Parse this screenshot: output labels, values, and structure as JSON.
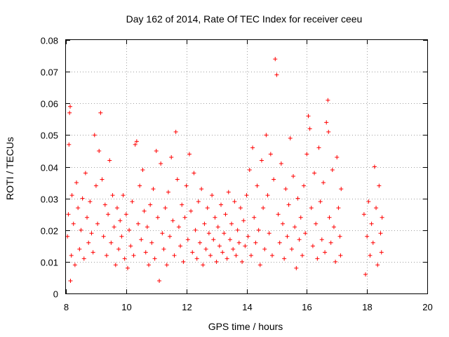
{
  "chart_data": {
    "type": "scatter",
    "title": "Day 162 of 2014, Rate Of TEC Index for receiver ceeu",
    "xlabel": "GPS time / hours",
    "ylabel": "ROTI / TECUs",
    "xlim": [
      8,
      20
    ],
    "ylim": [
      0,
      0.08
    ],
    "xticks": [
      8,
      10,
      12,
      14,
      16,
      18,
      20
    ],
    "xtick_labels": [
      "8",
      "10",
      "12",
      "14",
      "16",
      "18",
      "20"
    ],
    "yticks": [
      0,
      0.01,
      0.02,
      0.03,
      0.04,
      0.05,
      0.06,
      0.07,
      0.08
    ],
    "ytick_labels": [
      "0",
      "0.01",
      "0.02",
      "0.03",
      "0.04",
      "0.05",
      "0.06",
      "0.07",
      "0.08"
    ],
    "grid": true,
    "legend": "none",
    "marker": "+",
    "color": "#ff0000",
    "series": [
      {
        "name": "ROTI",
        "points": [
          [
            8.05,
            0.018
          ],
          [
            8.08,
            0.025
          ],
          [
            8.1,
            0.047
          ],
          [
            8.12,
            0.057
          ],
          [
            8.14,
            0.059
          ],
          [
            8.15,
            0.004
          ],
          [
            8.18,
            0.012
          ],
          [
            8.2,
            0.031
          ],
          [
            8.25,
            0.022
          ],
          [
            8.3,
            0.009
          ],
          [
            8.35,
            0.035
          ],
          [
            8.4,
            0.027
          ],
          [
            8.45,
            0.014
          ],
          [
            8.5,
            0.02
          ],
          [
            8.55,
            0.03
          ],
          [
            8.6,
            0.011
          ],
          [
            8.65,
            0.038
          ],
          [
            8.7,
            0.024
          ],
          [
            8.75,
            0.016
          ],
          [
            8.8,
            0.029
          ],
          [
            8.85,
            0.019
          ],
          [
            8.9,
            0.013
          ],
          [
            8.95,
            0.05
          ],
          [
            9.0,
            0.034
          ],
          [
            9.05,
            0.022
          ],
          [
            9.1,
            0.045
          ],
          [
            9.15,
            0.057
          ],
          [
            9.2,
            0.036
          ],
          [
            9.25,
            0.018
          ],
          [
            9.3,
            0.028
          ],
          [
            9.35,
            0.012
          ],
          [
            9.4,
            0.025
          ],
          [
            9.45,
            0.042
          ],
          [
            9.5,
            0.016
          ],
          [
            9.55,
            0.031
          ],
          [
            9.6,
            0.021
          ],
          [
            9.65,
            0.009
          ],
          [
            9.7,
            0.027
          ],
          [
            9.75,
            0.014
          ],
          [
            9.8,
            0.023
          ],
          [
            9.85,
            0.018
          ],
          [
            9.9,
            0.031
          ],
          [
            9.95,
            0.011
          ],
          [
            10.0,
            0.025
          ],
          [
            10.05,
            0.008
          ],
          [
            10.1,
            0.02
          ],
          [
            10.15,
            0.015
          ],
          [
            10.2,
            0.029
          ],
          [
            10.25,
            0.012
          ],
          [
            10.3,
            0.047
          ],
          [
            10.35,
            0.048
          ],
          [
            10.4,
            0.022
          ],
          [
            10.45,
            0.034
          ],
          [
            10.5,
            0.017
          ],
          [
            10.55,
            0.039
          ],
          [
            10.6,
            0.026
          ],
          [
            10.65,
            0.013
          ],
          [
            10.7,
            0.021
          ],
          [
            10.75,
            0.009
          ],
          [
            10.8,
            0.028
          ],
          [
            10.85,
            0.016
          ],
          [
            10.9,
            0.033
          ],
          [
            10.95,
            0.011
          ],
          [
            11.0,
            0.045
          ],
          [
            11.05,
            0.024
          ],
          [
            11.1,
            0.004
          ],
          [
            11.15,
            0.041
          ],
          [
            11.2,
            0.019
          ],
          [
            11.25,
            0.014
          ],
          [
            11.3,
            0.027
          ],
          [
            11.35,
            0.009
          ],
          [
            11.4,
            0.032
          ],
          [
            11.45,
            0.018
          ],
          [
            11.5,
            0.043
          ],
          [
            11.55,
            0.023
          ],
          [
            11.6,
            0.012
          ],
          [
            11.65,
            0.051
          ],
          [
            11.7,
            0.036
          ],
          [
            11.75,
            0.021
          ],
          [
            11.8,
            0.015
          ],
          [
            11.85,
            0.028
          ],
          [
            11.9,
            0.01
          ],
          [
            11.95,
            0.024
          ],
          [
            12.0,
            0.034
          ],
          [
            12.05,
            0.017
          ],
          [
            12.1,
            0.044
          ],
          [
            12.15,
            0.026
          ],
          [
            12.2,
            0.013
          ],
          [
            12.25,
            0.038
          ],
          [
            12.3,
            0.02
          ],
          [
            12.35,
            0.011
          ],
          [
            12.4,
            0.029
          ],
          [
            12.45,
            0.016
          ],
          [
            12.5,
            0.033
          ],
          [
            12.55,
            0.009
          ],
          [
            12.6,
            0.022
          ],
          [
            12.65,
            0.014
          ],
          [
            12.7,
            0.027
          ],
          [
            12.75,
            0.019
          ],
          [
            12.8,
            0.012
          ],
          [
            12.85,
            0.031
          ],
          [
            12.9,
            0.017
          ],
          [
            12.95,
            0.024
          ],
          [
            13.0,
            0.01
          ],
          [
            13.05,
            0.021
          ],
          [
            13.1,
            0.015
          ],
          [
            13.15,
            0.028
          ],
          [
            13.2,
            0.013
          ],
          [
            13.25,
            0.019
          ],
          [
            13.3,
            0.025
          ],
          [
            13.35,
            0.011
          ],
          [
            13.4,
            0.032
          ],
          [
            13.45,
            0.017
          ],
          [
            13.5,
            0.022
          ],
          [
            13.55,
            0.014
          ],
          [
            13.6,
            0.029
          ],
          [
            13.65,
            0.012
          ],
          [
            13.7,
            0.02
          ],
          [
            13.75,
            0.016
          ],
          [
            13.8,
            0.027
          ],
          [
            13.85,
            0.01
          ],
          [
            13.9,
            0.023
          ],
          [
            13.95,
            0.015
          ],
          [
            14.0,
            0.031
          ],
          [
            14.05,
            0.018
          ],
          [
            14.1,
            0.039
          ],
          [
            14.15,
            0.012
          ],
          [
            14.2,
            0.046
          ],
          [
            14.25,
            0.024
          ],
          [
            14.3,
            0.016
          ],
          [
            14.35,
            0.034
          ],
          [
            14.4,
            0.02
          ],
          [
            14.45,
            0.009
          ],
          [
            14.5,
            0.042
          ],
          [
            14.55,
            0.027
          ],
          [
            14.6,
            0.014
          ],
          [
            14.65,
            0.05
          ],
          [
            14.7,
            0.031
          ],
          [
            14.75,
            0.019
          ],
          [
            14.8,
            0.044
          ],
          [
            14.85,
            0.012
          ],
          [
            14.9,
            0.036
          ],
          [
            14.95,
            0.074
          ],
          [
            15.0,
            0.069
          ],
          [
            15.05,
            0.025
          ],
          [
            15.1,
            0.016
          ],
          [
            15.15,
            0.041
          ],
          [
            15.2,
            0.022
          ],
          [
            15.25,
            0.011
          ],
          [
            15.3,
            0.033
          ],
          [
            15.35,
            0.018
          ],
          [
            15.4,
            0.028
          ],
          [
            15.45,
            0.049
          ],
          [
            15.5,
            0.014
          ],
          [
            15.55,
            0.037
          ],
          [
            15.6,
            0.021
          ],
          [
            15.65,
            0.008
          ],
          [
            15.7,
            0.03
          ],
          [
            15.75,
            0.017
          ],
          [
            15.8,
            0.024
          ],
          [
            15.85,
            0.012
          ],
          [
            15.9,
            0.034
          ],
          [
            15.95,
            0.019
          ],
          [
            16.0,
            0.044
          ],
          [
            16.05,
            0.056
          ],
          [
            16.1,
            0.052
          ],
          [
            16.15,
            0.027
          ],
          [
            16.2,
            0.015
          ],
          [
            16.25,
            0.038
          ],
          [
            16.3,
            0.022
          ],
          [
            16.35,
            0.011
          ],
          [
            16.4,
            0.046
          ],
          [
            16.45,
            0.029
          ],
          [
            16.5,
            0.017
          ],
          [
            16.55,
            0.035
          ],
          [
            16.6,
            0.013
          ],
          [
            16.65,
            0.054
          ],
          [
            16.7,
            0.061
          ],
          [
            16.72,
            0.051
          ],
          [
            16.75,
            0.024
          ],
          [
            16.8,
            0.016
          ],
          [
            16.85,
            0.039
          ],
          [
            16.9,
            0.021
          ],
          [
            16.95,
            0.01
          ],
          [
            17.0,
            0.043
          ],
          [
            17.05,
            0.027
          ],
          [
            17.1,
            0.018
          ],
          [
            17.12,
            0.012
          ],
          [
            17.14,
            0.033
          ],
          [
            17.9,
            0.025
          ],
          [
            17.95,
            0.006
          ],
          [
            18.0,
            0.018
          ],
          [
            18.05,
            0.029
          ],
          [
            18.1,
            0.012
          ],
          [
            18.15,
            0.022
          ],
          [
            18.2,
            0.016
          ],
          [
            18.25,
            0.04
          ],
          [
            18.3,
            0.027
          ],
          [
            18.35,
            0.009
          ],
          [
            18.4,
            0.034
          ],
          [
            18.45,
            0.019
          ],
          [
            18.48,
            0.013
          ],
          [
            18.5,
            0.024
          ]
        ]
      }
    ]
  }
}
